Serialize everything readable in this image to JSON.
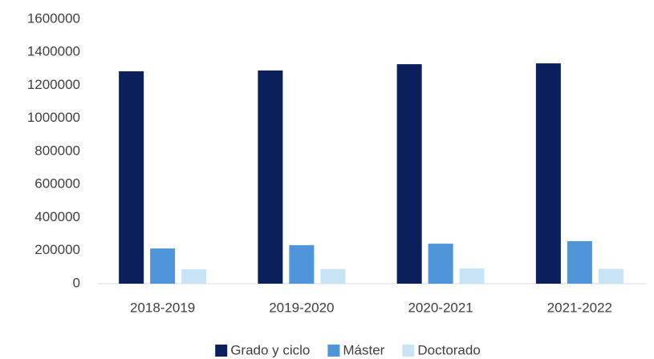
{
  "chart_data": {
    "type": "bar",
    "categories": [
      "2018-2019",
      "2019-2020",
      "2020-2021",
      "2021-2022"
    ],
    "series": [
      {
        "name": "Grado y ciclo",
        "color": "#0b1f5c",
        "values": [
          1285000,
          1290000,
          1328000,
          1333000
        ]
      },
      {
        "name": "Máster",
        "color": "#4e95d9",
        "values": [
          213000,
          233000,
          242000,
          257000
        ]
      },
      {
        "name": "Doctorado",
        "color": "#c6e4f6",
        "values": [
          87000,
          89000,
          92000,
          90000
        ]
      }
    ],
    "ylim": [
      0,
      1600000
    ],
    "yticks": [
      0,
      200000,
      400000,
      600000,
      800000,
      1000000,
      1200000,
      1400000,
      1600000
    ],
    "grid": false,
    "legend": "bottom"
  }
}
